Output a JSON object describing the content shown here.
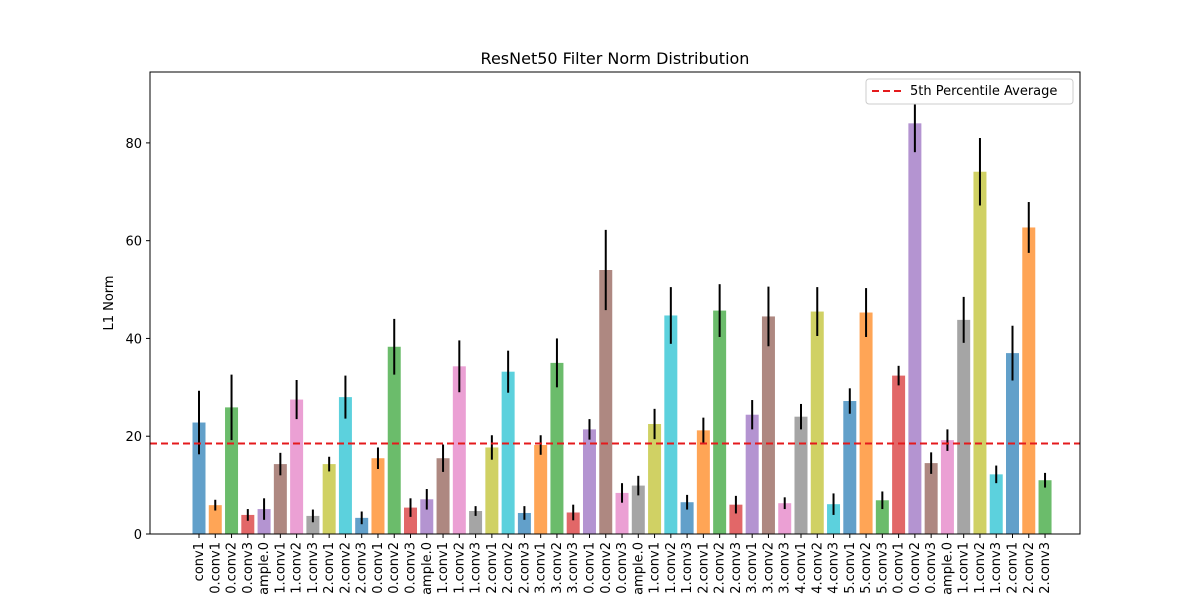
{
  "chart_data": {
    "type": "bar",
    "title": "ResNet50 Filter Norm Distribution",
    "xlabel": "",
    "ylabel": "L1 Norm",
    "ylim": [
      0,
      94.5
    ],
    "yticks": [
      0,
      20,
      40,
      60,
      80
    ],
    "grid": false,
    "legend": {
      "placement": "top-right",
      "entries": [
        "5th Percentile Average"
      ]
    },
    "threshold": {
      "name": "5th Percentile Average",
      "value": 18.5,
      "color": "#e41a1c",
      "style": "dashed"
    },
    "bar_colors": [
      "#1f77b4",
      "#ff7f0e",
      "#2ca02c",
      "#d62728",
      "#9467bd",
      "#8c564b",
      "#e377c2",
      "#7f7f7f",
      "#bcbd22",
      "#17becf"
    ],
    "categories": [
      "conv1",
      "0.conv1",
      "0.conv2",
      "0.conv3",
      "ample.0",
      "1.conv1",
      "1.conv2",
      "1.conv3",
      "2.conv1",
      "2.conv2",
      "2.conv3",
      "0.conv1",
      "0.conv2",
      "0.conv3",
      "ample.0",
      "1.conv1",
      "1.conv2",
      "1.conv3",
      "2.conv1",
      "2.conv2",
      "2.conv3",
      "3.conv1",
      "3.conv2",
      "3.conv3",
      "0.conv1",
      "0.conv2",
      "0.conv3",
      "ample.0",
      "1.conv1",
      "1.conv2",
      "1.conv3",
      "2.conv1",
      "2.conv2",
      "2.conv3",
      "3.conv1",
      "3.conv2",
      "3.conv3",
      "4.conv1",
      "4.conv2",
      "4.conv3",
      "5.conv1",
      "5.conv2",
      "5.conv3",
      "0.conv1",
      "0.conv2",
      "0.conv3",
      "ample.0",
      "1.conv1",
      "1.conv2",
      "1.conv3",
      "2.conv1",
      "2.conv2",
      "2.conv3"
    ],
    "values": [
      22.8,
      5.9,
      25.9,
      3.9,
      5.1,
      14.3,
      27.5,
      3.7,
      14.3,
      28.0,
      3.3,
      15.5,
      38.3,
      5.4,
      7.1,
      15.5,
      34.3,
      4.7,
      17.7,
      33.2,
      4.3,
      18.2,
      35.0,
      4.4,
      21.4,
      54.0,
      8.4,
      9.9,
      22.5,
      44.7,
      6.5,
      21.2,
      45.7,
      6.0,
      24.4,
      44.5,
      6.3,
      24.0,
      45.5,
      6.1,
      27.2,
      45.3,
      6.9,
      32.4,
      84.0,
      14.5,
      19.2,
      43.8,
      74.1,
      12.2,
      37.0,
      62.7,
      11.0
    ],
    "errors": [
      6.5,
      1.1,
      6.7,
      1.2,
      2.2,
      2.3,
      4.0,
      1.3,
      1.5,
      4.4,
      1.3,
      2.2,
      5.7,
      1.9,
      2.1,
      2.8,
      5.3,
      1.0,
      2.5,
      4.3,
      1.4,
      2.0,
      5.0,
      1.6,
      2.1,
      8.2,
      2.0,
      2.0,
      3.1,
      5.8,
      1.5,
      2.6,
      5.4,
      1.8,
      3.0,
      6.1,
      1.2,
      2.6,
      5.0,
      2.2,
      2.6,
      5.0,
      1.8,
      2.0,
      5.9,
      2.2,
      2.2,
      4.7,
      6.9,
      1.8,
      5.6,
      5.2,
      1.5
    ]
  }
}
